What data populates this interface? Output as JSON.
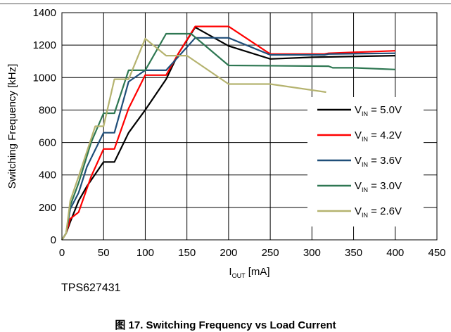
{
  "figure": {
    "device": "TPS627431",
    "caption": "图 17. Switching Frequency vs Load Current"
  },
  "chart_data": {
    "type": "line",
    "title": "",
    "xlabel": {
      "main": "I",
      "sub": "OUT",
      "unit": " [mA]"
    },
    "ylabel": "Switching Frequency [kHz]",
    "xlim": [
      0,
      450
    ],
    "ylim": [
      0,
      1400
    ],
    "xticks": [
      0,
      50,
      100,
      150,
      200,
      250,
      300,
      350,
      400,
      450
    ],
    "yticks": [
      0,
      200,
      400,
      600,
      800,
      1000,
      1200,
      1400
    ],
    "grid": true,
    "legend_position": "right",
    "series": [
      {
        "name": "5.0V",
        "label_main": "V",
        "label_sub": "IN",
        "label_value": " = 5.0V",
        "color": "#000000",
        "x": [
          0,
          5,
          10,
          20,
          30,
          50,
          63,
          80,
          100,
          125,
          140,
          160,
          200,
          250,
          300,
          400
        ],
        "y": [
          0,
          40,
          110,
          240,
          330,
          480,
          480,
          660,
          800,
          990,
          1150,
          1310,
          1195,
          1115,
          1125,
          1135
        ]
      },
      {
        "name": "4.2V",
        "label_main": "V",
        "label_sub": "IN",
        "label_value": " = 4.2V",
        "color": "#ff0000",
        "x": [
          0,
          5,
          10,
          20,
          35,
          50,
          63,
          80,
          100,
          125,
          140,
          160,
          200,
          250,
          315,
          320,
          400
        ],
        "y": [
          0,
          40,
          130,
          170,
          390,
          560,
          560,
          810,
          1015,
          1015,
          1150,
          1315,
          1315,
          1145,
          1145,
          1150,
          1165
        ]
      },
      {
        "name": "3.6V",
        "label_main": "V",
        "label_sub": "IN",
        "label_value": " = 3.6V",
        "color": "#1f4e79",
        "x": [
          0,
          5,
          10,
          20,
          30,
          50,
          63,
          80,
          100,
          125,
          140,
          160,
          200,
          250,
          315,
          320,
          400
        ],
        "y": [
          0,
          40,
          190,
          290,
          450,
          660,
          660,
          975,
          1045,
          1045,
          1130,
          1245,
          1245,
          1140,
          1140,
          1145,
          1150
        ]
      },
      {
        "name": "3.0V",
        "label_main": "V",
        "label_sub": "IN",
        "label_value": " = 3.0V",
        "color": "#2e7752",
        "x": [
          0,
          5,
          10,
          20,
          35,
          50,
          63,
          80,
          100,
          125,
          155,
          200,
          320,
          325,
          350,
          400
        ],
        "y": [
          0,
          40,
          210,
          350,
          600,
          780,
          780,
          1045,
          1045,
          1270,
          1270,
          1075,
          1070,
          1060,
          1060,
          1050
        ]
      },
      {
        "name": "2.6V",
        "label_main": "V",
        "label_sub": "IN",
        "label_value": " = 2.6V",
        "color": "#b5b36f",
        "x": [
          0,
          5,
          10,
          20,
          40,
          50,
          63,
          80,
          100,
          125,
          150,
          200,
          250,
          317
        ],
        "y": [
          0,
          40,
          240,
          390,
          700,
          700,
          990,
          990,
          1240,
          1135,
          1135,
          960,
          960,
          910
        ]
      }
    ]
  }
}
